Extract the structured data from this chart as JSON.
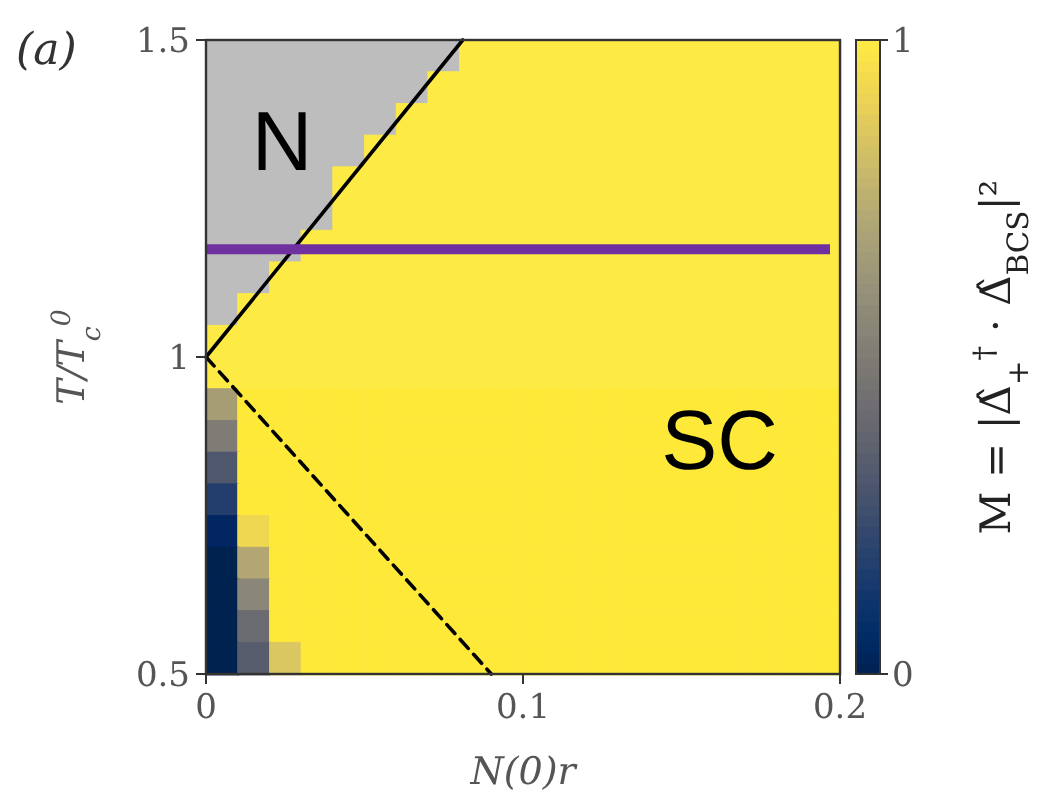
{
  "chart_data": {
    "type": "scatter",
    "xlabel": "N(0)r",
    "ylabel": "T/T$_{c}$$^{0}$",
    "clabel": "M = |Δ̂$_{+}$$^{†}$ · Δ̂$_{BCS}$|²",
    "annotations": [
      "(a)",
      "N",
      {
        "text": "SC",
        "x": 0.162,
        "y": 0.87
      }
    ],
    "xlim": [
      0,
      0.2
    ],
    "xticks": [
      0,
      0.1,
      0.2
    ],
    "ylim": [
      0.5,
      1.5
    ],
    "yticks": [
      0.5,
      1,
      1.5
    ],
    "clim": [
      0,
      1
    ],
    "cticks": [
      0,
      1
    ],
    "marker": "square",
    "x": [
      0.005,
      0.015,
      0.025,
      0.035,
      0.045,
      0.055,
      0.065,
      0.075,
      0.085,
      0.095,
      0.105,
      0.115,
      0.125,
      0.135,
      0.145,
      0.155,
      0.165,
      0.175,
      0.185,
      0.195
    ],
    "series": [
      {
        "values": [
          null,
          null,
          null,
          null,
          null,
          null,
          null,
          null,
          1.475,
          1.475,
          1.475,
          1.475,
          1.475,
          1.475,
          1.475,
          1.475,
          1.475,
          1.475,
          1.475,
          1.475
        ],
        "cvalues": [
          null,
          null,
          null,
          null,
          null,
          null,
          null,
          null,
          1,
          1,
          1,
          1,
          1,
          1,
          1,
          1,
          1,
          1,
          1,
          1
        ]
      },
      {
        "values": [
          null,
          null,
          null,
          null,
          null,
          null,
          null,
          1.425,
          1.425,
          1.425,
          1.425,
          1.425,
          1.425,
          1.425,
          1.425,
          1.425,
          1.425,
          1.425,
          1.425,
          1.425
        ],
        "cvalues": [
          null,
          null,
          null,
          null,
          null,
          null,
          null,
          1,
          1,
          1,
          1,
          1,
          1,
          1,
          1,
          1,
          1,
          1,
          1,
          1
        ]
      },
      {
        "values": [
          null,
          null,
          null,
          null,
          null,
          null,
          1.375,
          1.375,
          1.375,
          1.375,
          1.375,
          1.375,
          1.375,
          1.375,
          1.375,
          1.375,
          1.375,
          1.375,
          1.375,
          1.375
        ],
        "cvalues": [
          null,
          null,
          null,
          null,
          null,
          null,
          1,
          1,
          1,
          1,
          1,
          1,
          1,
          1,
          1,
          1,
          1,
          1,
          1,
          1
        ]
      },
      {
        "values": [
          null,
          null,
          null,
          null,
          null,
          1.325,
          1.325,
          1.325,
          1.325,
          1.325,
          1.325,
          1.325,
          1.325,
          1.325,
          1.325,
          1.325,
          1.325,
          1.325,
          1.325,
          1.325
        ],
        "cvalues": [
          null,
          null,
          null,
          null,
          null,
          1,
          1,
          1,
          1,
          1,
          1,
          1,
          1,
          1,
          1,
          1,
          1,
          1,
          1,
          1
        ]
      },
      {
        "values": [
          null,
          null,
          null,
          null,
          1.275,
          1.275,
          1.275,
          1.275,
          1.275,
          1.275,
          1.275,
          1.275,
          1.275,
          1.275,
          1.275,
          1.275,
          1.275,
          1.275,
          1.275,
          1.275
        ],
        "cvalues": [
          null,
          null,
          null,
          null,
          1,
          1,
          1,
          1,
          1,
          1,
          1,
          1,
          1,
          1,
          1,
          1,
          1,
          1,
          1,
          1
        ]
      },
      {
        "values": [
          null,
          null,
          null,
          null,
          1.225,
          1.225,
          1.225,
          1.225,
          1.225,
          1.225,
          1.225,
          1.225,
          1.225,
          1.225,
          1.225,
          1.225,
          1.225,
          1.225,
          1.225,
          1.225
        ],
        "cvalues": [
          null,
          null,
          null,
          null,
          1,
          1,
          1,
          1,
          1,
          1,
          1,
          1,
          1,
          1,
          1,
          1,
          1,
          1,
          1,
          1
        ]
      },
      {
        "values": [
          null,
          null,
          null,
          1.175,
          1.175,
          1.175,
          1.175,
          1.175,
          1.175,
          1.175,
          1.175,
          1.175,
          1.175,
          1.175,
          1.175,
          1.175,
          1.175,
          1.175,
          1.175,
          1.175
        ],
        "cvalues": [
          null,
          null,
          null,
          1,
          1,
          1,
          1,
          1,
          1,
          1,
          1,
          1,
          1,
          1,
          1,
          1,
          1,
          1,
          1,
          1
        ]
      },
      {
        "values": [
          null,
          null,
          1.125,
          1.125,
          1.125,
          1.125,
          1.125,
          1.125,
          1.125,
          1.125,
          1.125,
          1.125,
          1.125,
          1.125,
          1.125,
          1.125,
          1.125,
          1.125,
          1.125,
          1.125
        ],
        "cvalues": [
          null,
          null,
          1,
          1,
          1,
          1,
          1,
          1,
          1,
          1,
          1,
          1,
          1,
          1,
          1,
          1,
          1,
          1,
          1,
          1
        ]
      },
      {
        "values": [
          null,
          1.075,
          1.075,
          1.075,
          1.075,
          1.075,
          1.075,
          1.075,
          1.075,
          1.075,
          1.075,
          1.075,
          1.075,
          1.075,
          1.075,
          1.075,
          1.075,
          1.075,
          1.075,
          1.075
        ],
        "cvalues": [
          null,
          1,
          1,
          1,
          1,
          1,
          1,
          1,
          1,
          1,
          1,
          1,
          1,
          1,
          1,
          1,
          1,
          1,
          1,
          1
        ]
      },
      {
        "values": [
          1.025,
          1.025,
          1.025,
          1.025,
          1.025,
          1.025,
          1.025,
          1.025,
          1.025,
          1.025,
          1.025,
          1.025,
          1.025,
          1.025,
          1.025,
          1.025,
          1.025,
          1.025,
          1.025,
          1.025
        ],
        "cvalues": [
          1,
          1,
          1,
          1,
          1,
          1,
          1,
          1,
          1,
          1,
          1,
          1,
          1,
          1,
          1,
          1,
          1,
          1,
          1,
          1
        ]
      },
      {
        "values": [
          0.975,
          0.975,
          0.975,
          0.975,
          0.975,
          0.975,
          0.975,
          0.975,
          0.975,
          0.975,
          0.975,
          0.975,
          0.975,
          0.975,
          0.975,
          0.975,
          0.975,
          0.975,
          0.975,
          0.975
        ],
        "cvalues": [
          1,
          1,
          1,
          1,
          1,
          1,
          1,
          1,
          1,
          1,
          1,
          1,
          1,
          1,
          1,
          1,
          1,
          1,
          1,
          1
        ]
      },
      {
        "values": [
          0.925,
          0.925,
          0.925,
          0.925,
          0.925,
          0.925,
          0.925,
          0.925,
          0.925,
          0.925,
          0.925,
          0.925,
          0.925,
          0.925,
          0.925,
          0.925,
          0.925,
          0.925,
          0.925,
          0.925
        ],
        "cvalues": [
          0.68,
          1,
          1,
          1,
          1,
          1,
          1,
          1,
          1,
          1,
          1,
          1,
          1,
          1,
          1,
          1,
          1,
          1,
          1,
          1
        ],
        "colors": [
          "#a69d75",
          "#fee838",
          "#fee838",
          "#fee838",
          "#fee838",
          "#fee838",
          "#fee838",
          "#fee838",
          "#fee838",
          "#fee838",
          "#fee838",
          "#fee838",
          "#fee838",
          "#fee838",
          "#fee838",
          "#fee838",
          "#fee838",
          "#fee838",
          "#fee838",
          "#fee838"
        ]
      },
      {
        "values": [
          0.875,
          0.875,
          0.875,
          0.875,
          0.875,
          0.875,
          0.875,
          0.875,
          0.875,
          0.875,
          0.875,
          0.875,
          0.875,
          0.875,
          0.875,
          0.875,
          0.875,
          0.875,
          0.875,
          0.875
        ],
        "cvalues": [
          0.51,
          1,
          1,
          1,
          1,
          1,
          1,
          1,
          1,
          1,
          1,
          1,
          1,
          1,
          1,
          1,
          1,
          1,
          1,
          1
        ],
        "colors": [
          "#7f7c75",
          "#fee838",
          "#fee838",
          "#fee838",
          "#fee838",
          "#fee838",
          "#fee838",
          "#fee838",
          "#fee838",
          "#fee838",
          "#fee838",
          "#fee838",
          "#fee838",
          "#fee838",
          "#fee838",
          "#fee838",
          "#fee838",
          "#fee838",
          "#fee838",
          "#fee838"
        ]
      },
      {
        "values": [
          0.825,
          0.825,
          0.825,
          0.825,
          0.825,
          0.825,
          0.825,
          0.825,
          0.825,
          0.825,
          0.825,
          0.825,
          0.825,
          0.825,
          0.825,
          0.825,
          0.825,
          0.825,
          0.825,
          0.825
        ],
        "cvalues": [
          0.3,
          1,
          1,
          1,
          1,
          1,
          1,
          1,
          1,
          1,
          1,
          1,
          1,
          1,
          1,
          1,
          1,
          1,
          1,
          1
        ],
        "colors": [
          "#4e576c",
          "#fee838",
          "#fee838",
          "#fee838",
          "#fee838",
          "#fee838",
          "#fee838",
          "#fee838",
          "#fee838",
          "#fee838",
          "#fee838",
          "#fee838",
          "#fee838",
          "#fee838",
          "#fee838",
          "#fee838",
          "#fee838",
          "#fee838",
          "#fee838",
          "#fee838"
        ]
      },
      {
        "values": [
          0.775,
          0.775,
          0.775,
          0.775,
          0.775,
          0.775,
          0.775,
          0.775,
          0.775,
          0.775,
          0.775,
          0.775,
          0.775,
          0.775,
          0.775,
          0.775,
          0.775,
          0.775,
          0.775,
          0.775
        ],
        "cvalues": [
          0.18,
          1,
          1,
          1,
          1,
          1,
          1,
          1,
          1,
          1,
          1,
          1,
          1,
          1,
          1,
          1,
          1,
          1,
          1,
          1
        ],
        "colors": [
          "#233e6c",
          "#fee838",
          "#fee838",
          "#fee838",
          "#fee838",
          "#fee838",
          "#fee838",
          "#fee838",
          "#fee838",
          "#fee838",
          "#fee838",
          "#fee838",
          "#fee838",
          "#fee838",
          "#fee838",
          "#fee838",
          "#fee838",
          "#fee838",
          "#fee838",
          "#fee838"
        ]
      },
      {
        "values": [
          0.725,
          0.725,
          0.725,
          0.725,
          0.725,
          0.725,
          0.725,
          0.725,
          0.725,
          0.725,
          0.725,
          0.725,
          0.725,
          0.725,
          0.725,
          0.725,
          0.725,
          0.725,
          0.725,
          0.725
        ],
        "cvalues": [
          0.03,
          0.92,
          1,
          1,
          1,
          1,
          1,
          1,
          1,
          1,
          1,
          1,
          1,
          1,
          1,
          1,
          1,
          1,
          1,
          1
        ],
        "colors": [
          "#012661",
          "#eed751",
          "#fee838",
          "#fee838",
          "#fee838",
          "#fee838",
          "#fee838",
          "#fee838",
          "#fee838",
          "#fee838",
          "#fee838",
          "#fee838",
          "#fee838",
          "#fee838",
          "#fee838",
          "#fee838",
          "#fee838",
          "#fee838",
          "#fee838",
          "#fee838"
        ]
      },
      {
        "values": [
          0.675,
          0.675,
          0.675,
          0.675,
          0.675,
          0.675,
          0.675,
          0.675,
          0.675,
          0.675,
          0.675,
          0.675,
          0.675,
          0.675,
          0.675,
          0.675,
          0.675,
          0.675,
          0.675,
          0.675
        ],
        "cvalues": [
          0,
          0.72,
          1,
          1,
          1,
          1,
          1,
          1,
          1,
          1,
          1,
          1,
          1,
          1,
          1,
          1,
          1,
          1,
          1,
          1
        ],
        "colors": [
          "#00224e",
          "#b3a672",
          "#fee838",
          "#fee838",
          "#fee838",
          "#fee838",
          "#fee838",
          "#fee838",
          "#fee838",
          "#fee838",
          "#fee838",
          "#fee838",
          "#fee838",
          "#fee838",
          "#fee838",
          "#fee838",
          "#fee838",
          "#fee838",
          "#fee838",
          "#fee838"
        ]
      },
      {
        "values": [
          0.625,
          0.625,
          0.625,
          0.625,
          0.625,
          0.625,
          0.625,
          0.625,
          0.625,
          0.625,
          0.625,
          0.625,
          0.625,
          0.625,
          0.625,
          0.625,
          0.625,
          0.625,
          0.625,
          0.625
        ],
        "cvalues": [
          0,
          0.56,
          1,
          1,
          1,
          1,
          1,
          1,
          1,
          1,
          1,
          1,
          1,
          1,
          1,
          1,
          1,
          1,
          1,
          1
        ],
        "colors": [
          "#00224e",
          "#8a8678",
          "#fee838",
          "#fee838",
          "#fee838",
          "#fee838",
          "#fee838",
          "#fee838",
          "#fee838",
          "#fee838",
          "#fee838",
          "#fee838",
          "#fee838",
          "#fee838",
          "#fee838",
          "#fee838",
          "#fee838",
          "#fee838",
          "#fee838",
          "#fee838"
        ]
      },
      {
        "values": [
          0.575,
          0.575,
          0.575,
          0.575,
          0.575,
          0.575,
          0.575,
          0.575,
          0.575,
          0.575,
          0.575,
          0.575,
          0.575,
          0.575,
          0.575,
          0.575,
          0.575,
          0.575,
          0.575,
          0.575
        ],
        "cvalues": [
          0,
          0.42,
          1,
          1,
          1,
          1,
          1,
          1,
          1,
          1,
          1,
          1,
          1,
          1,
          1,
          1,
          1,
          1,
          1,
          1
        ],
        "colors": [
          "#00224e",
          "#6b6c71",
          "#fee838",
          "#fee838",
          "#fee838",
          "#fee838",
          "#fee838",
          "#fee838",
          "#fee838",
          "#fee838",
          "#fee838",
          "#fee838",
          "#fee838",
          "#fee838",
          "#fee838",
          "#fee838",
          "#fee838",
          "#fee838",
          "#fee838",
          "#fee838"
        ]
      },
      {
        "values": [
          0.525,
          0.525,
          0.525,
          0.525,
          0.525,
          0.525,
          0.525,
          0.525,
          0.525,
          0.525,
          0.525,
          0.525,
          0.525,
          0.525,
          0.525,
          0.525,
          0.525,
          0.525,
          0.525,
          0.525
        ],
        "cvalues": [
          0,
          0.35,
          0.86,
          1,
          1,
          1,
          1,
          1,
          1,
          1,
          1,
          1,
          1,
          1,
          1,
          1,
          1,
          1,
          1,
          1
        ],
        "colors": [
          "#00224e",
          "#575d6d",
          "#dbc761",
          "#fee838",
          "#fee838",
          "#fee838",
          "#fee838",
          "#fee838",
          "#fee838",
          "#fee838",
          "#fee838",
          "#fee838",
          "#fee838",
          "#fee838",
          "#fee838",
          "#fee838",
          "#fee838",
          "#fee838",
          "#fee838",
          "#fee838"
        ]
      },
      {
        "type": "line",
        "x": [
          0,
          0.081
        ],
        "values": [
          1,
          1.5
        ],
        "color": "#000000",
        "line_style": "solid",
        "marker": "none"
      },
      {
        "type": "line",
        "x": [
          0,
          0.09
        ],
        "values": [
          1,
          0.5
        ],
        "color": "#000000",
        "line_style": "dashed",
        "marker": "none"
      }
    ],
    "ref_lines": [
      {
        "axis": "y",
        "value": 1.17,
        "color": "#7030a0"
      }
    ]
  }
}
